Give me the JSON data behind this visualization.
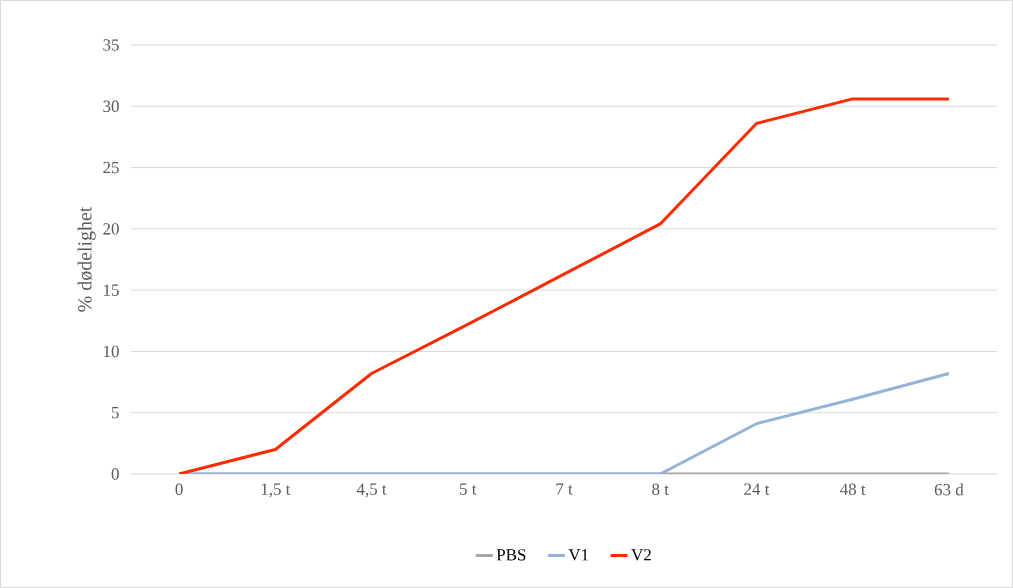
{
  "chart_data": {
    "type": "line",
    "ylabel": "% dødelighet",
    "categories": [
      "0",
      "1,5 t",
      "4,5 t",
      "5 t",
      "7 t",
      "8 t",
      "24 t",
      "48 t",
      "63 d"
    ],
    "series": [
      {
        "name": "PBS",
        "color": "#a5a5a5",
        "values": [
          0,
          0,
          0,
          0,
          0,
          0,
          0,
          0,
          0
        ]
      },
      {
        "name": "V1",
        "color": "#95b3d7",
        "values": [
          0,
          0,
          0,
          0,
          0,
          0,
          4.1,
          6.1,
          8.2
        ]
      },
      {
        "name": "V2",
        "color": "#ff2a00",
        "values": [
          0,
          2.0,
          8.2,
          12.2,
          16.3,
          20.4,
          28.6,
          30.6,
          30.6
        ]
      }
    ],
    "ylim": [
      0,
      35
    ],
    "yticks": [
      0,
      5,
      10,
      15,
      20,
      25,
      30,
      35
    ],
    "grid": "y",
    "legend": "bottom"
  }
}
